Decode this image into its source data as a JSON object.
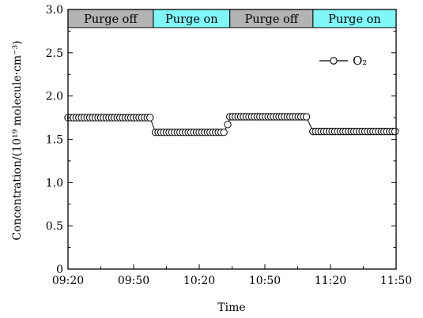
{
  "chart_data": {
    "type": "scatter",
    "xlabel": "Time",
    "ylabel": "Concentration/(10¹⁹ molecule·cm⁻³)",
    "ylim": [
      0,
      3.0
    ],
    "xlim": [
      "09:20",
      "11:50"
    ],
    "yticks": [
      "0",
      "0.5",
      "1.0",
      "1.5",
      "2.0",
      "2.5",
      "3.0"
    ],
    "xticks": [
      "09:20",
      "09:50",
      "10:20",
      "10:50",
      "11:20",
      "11:50"
    ],
    "grid": false,
    "legend_position": "top-right",
    "bands": [
      {
        "label": "Purge off",
        "start": "09:20",
        "end": "09:59",
        "color": "#b3b3b3"
      },
      {
        "label": "Purge on",
        "start": "09:59",
        "end": "10:34",
        "color": "#7ff7f7"
      },
      {
        "label": "Purge off",
        "start": "10:34",
        "end": "11:12",
        "color": "#b3b3b3"
      },
      {
        "label": "Purge on",
        "start": "11:12",
        "end": "11:50",
        "color": "#7ff7f7"
      }
    ],
    "series": [
      {
        "name": "O₂",
        "marker": "open-circle",
        "color": "#000000",
        "segments": [
          {
            "start": "09:20",
            "end": "09:58",
            "value": 1.75
          },
          {
            "start": "10:00",
            "end": "10:32",
            "value": 1.58
          },
          {
            "start": "10:33",
            "end": "10:33",
            "value": 1.67
          },
          {
            "start": "10:34",
            "end": "11:10",
            "value": 1.76
          },
          {
            "start": "11:12",
            "end": "11:50",
            "value": 1.59
          }
        ],
        "step_minutes": 1.25
      }
    ]
  }
}
